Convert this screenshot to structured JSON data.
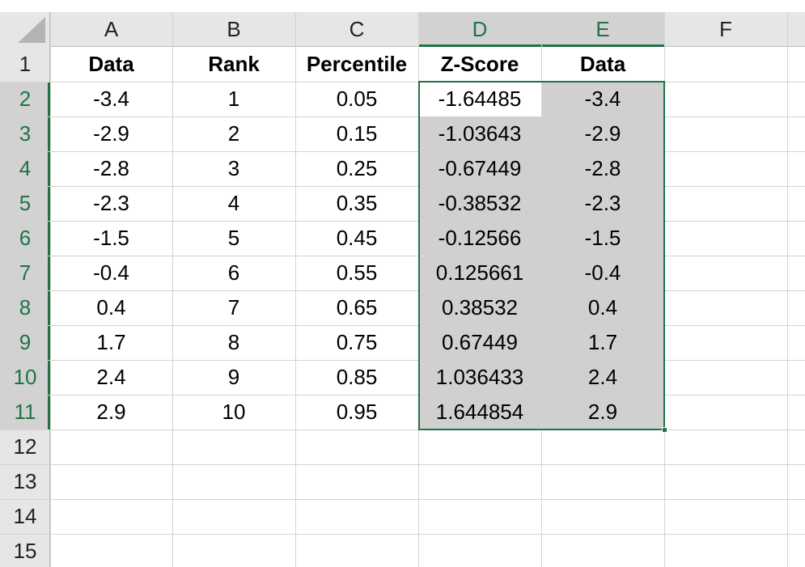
{
  "columns": [
    "A",
    "B",
    "C",
    "D",
    "E",
    "F"
  ],
  "row_numbers": [
    "1",
    "2",
    "3",
    "4",
    "5",
    "6",
    "7",
    "8",
    "9",
    "10",
    "11",
    "12",
    "13",
    "14",
    "15"
  ],
  "rows": [
    [
      "Data",
      "Rank",
      "Percentile",
      "Z-Score",
      "Data"
    ],
    [
      "-3.4",
      "1",
      "0.05",
      "-1.64485",
      "-3.4"
    ],
    [
      "-2.9",
      "2",
      "0.15",
      "-1.03643",
      "-2.9"
    ],
    [
      "-2.8",
      "3",
      "0.25",
      "-0.67449",
      "-2.8"
    ],
    [
      "-2.3",
      "4",
      "0.35",
      "-0.38532",
      "-2.3"
    ],
    [
      "-1.5",
      "5",
      "0.45",
      "-0.12566",
      "-1.5"
    ],
    [
      "-0.4",
      "6",
      "0.55",
      "0.125661",
      "-0.4"
    ],
    [
      "0.4",
      "7",
      "0.65",
      "0.38532",
      "0.4"
    ],
    [
      "1.7",
      "8",
      "0.75",
      "0.67449",
      "1.7"
    ],
    [
      "2.4",
      "9",
      "0.85",
      "1.036433",
      "2.4"
    ],
    [
      "2.9",
      "10",
      "0.95",
      "1.644854",
      "2.9"
    ]
  ]
}
